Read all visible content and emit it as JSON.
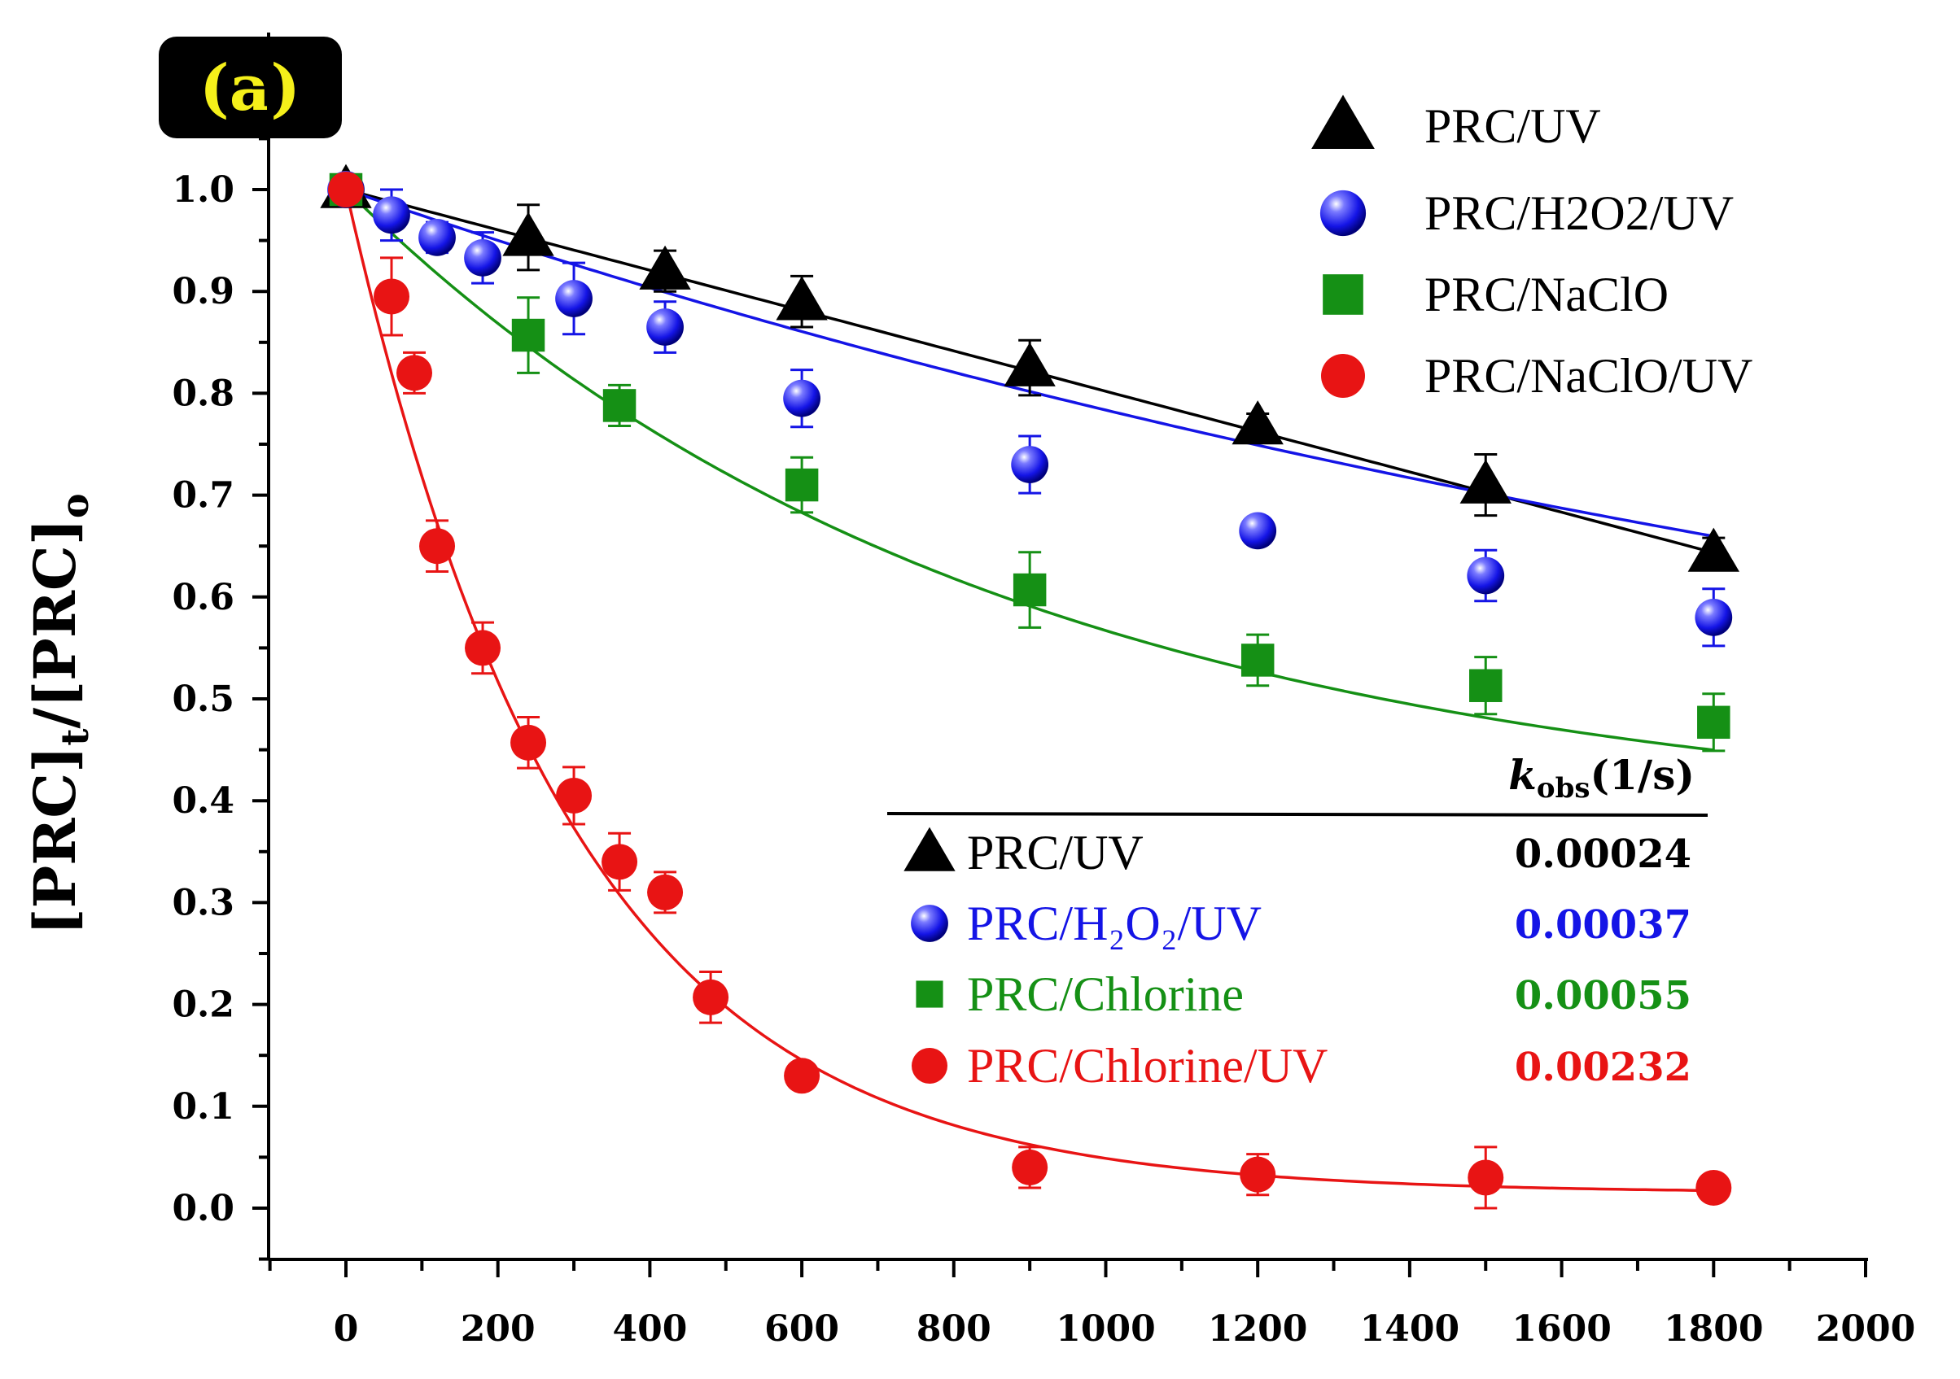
{
  "chart_data": {
    "type": "scatter",
    "panel_label": "(a)",
    "xlabel": "",
    "ylabel": {
      "main": "[PRC]",
      "sub1": "t",
      "mid": "/[PRC]",
      "sub2": "o"
    },
    "xlim": [
      -100,
      2000
    ],
    "ylim": [
      -0.05,
      1.1
    ],
    "xticks": [
      0,
      200,
      400,
      600,
      800,
      1000,
      1200,
      1400,
      1600,
      1800,
      2000
    ],
    "yticks": [
      0.0,
      0.1,
      0.2,
      0.3,
      0.4,
      0.5,
      0.6,
      0.7,
      0.8,
      0.9,
      1.0
    ],
    "ytick_labels": [
      "0.0",
      "0.1",
      "0.2",
      "0.3",
      "0.4",
      "0.5",
      "0.6",
      "0.7",
      "0.8",
      "0.9",
      "1.0"
    ],
    "series": [
      {
        "name": "PRC/UV",
        "marker": "triangle",
        "color": "#000000",
        "x": [
          0,
          240,
          420,
          600,
          900,
          1200,
          1500,
          1800
        ],
        "y": [
          1.0,
          0.953,
          0.92,
          0.89,
          0.825,
          0.768,
          0.71,
          0.643
        ],
        "err": [
          0.005,
          0.032,
          0.02,
          0.025,
          0.027,
          0.012,
          0.03,
          0.015
        ],
        "fit": {
          "type": "linear",
          "slope": -0.000198,
          "intercept": 1.0
        }
      },
      {
        "name": "PRC/H2O2/UV",
        "marker": "sphere",
        "color": "#1414e6",
        "x": [
          0,
          60,
          120,
          180,
          300,
          420,
          600,
          900,
          1200,
          1500,
          1800
        ],
        "y": [
          1.0,
          0.975,
          0.953,
          0.933,
          0.893,
          0.865,
          0.795,
          0.73,
          0.665,
          0.621,
          0.58
        ],
        "err": [
          0.005,
          0.025,
          0.015,
          0.025,
          0.035,
          0.025,
          0.028,
          0.028,
          0.01,
          0.025,
          0.028
        ],
        "fit": {
          "type": "exp",
          "a": 0.7,
          "k": 0.00037,
          "c": 0.3
        }
      },
      {
        "name": "PRC/NaClO",
        "marker": "square",
        "color": "#159015",
        "x": [
          0,
          240,
          360,
          600,
          900,
          1200,
          1500,
          1800
        ],
        "y": [
          1.0,
          0.857,
          0.788,
          0.71,
          0.607,
          0.538,
          0.513,
          0.477
        ],
        "err": [
          0.005,
          0.037,
          0.02,
          0.027,
          0.037,
          0.025,
          0.028,
          0.028
        ],
        "fit": {
          "type": "exp",
          "a": 0.625,
          "k": 0.00118,
          "c": 0.375
        }
      },
      {
        "name": "PRC/NaClO/UV",
        "marker": "circle",
        "color": "#e81414",
        "x": [
          0,
          60,
          90,
          120,
          180,
          240,
          300,
          360,
          420,
          480,
          600,
          900,
          1200,
          1500,
          1800
        ],
        "y": [
          1.0,
          0.895,
          0.82,
          0.65,
          0.55,
          0.457,
          0.405,
          0.34,
          0.31,
          0.207,
          0.13,
          0.04,
          0.033,
          0.03,
          0.02
        ],
        "err": [
          0.005,
          0.038,
          0.02,
          0.025,
          0.025,
          0.025,
          0.028,
          0.028,
          0.02,
          0.025,
          0.005,
          0.02,
          0.02,
          0.03,
          0.005
        ],
        "fit": {
          "type": "exp",
          "a": 0.985,
          "k": 0.00337,
          "c": 0.015
        }
      }
    ],
    "legend": {
      "position": "top-right",
      "entries": [
        "PRC/UV",
        "PRC/H2O2/UV",
        "PRC/NaClO",
        "PRC/NaClO/UV"
      ]
    },
    "kobs_table": {
      "header_k": "k",
      "header_sub": "obs",
      "header_unit": "(1/s)",
      "rows": [
        {
          "name": "PRC/UV",
          "value": "0.00024",
          "color": "#000000",
          "marker": "triangle"
        },
        {
          "name": "PRC/H₂O₂/UV",
          "value": "0.00037",
          "color": "#1414e6",
          "marker": "sphere"
        },
        {
          "name": "PRC/Chlorine",
          "value": "0.00055",
          "color": "#159015",
          "marker": "square"
        },
        {
          "name": "PRC/Chlorine/UV",
          "value": "0.00232",
          "color": "#e81414",
          "marker": "circle"
        }
      ]
    }
  }
}
